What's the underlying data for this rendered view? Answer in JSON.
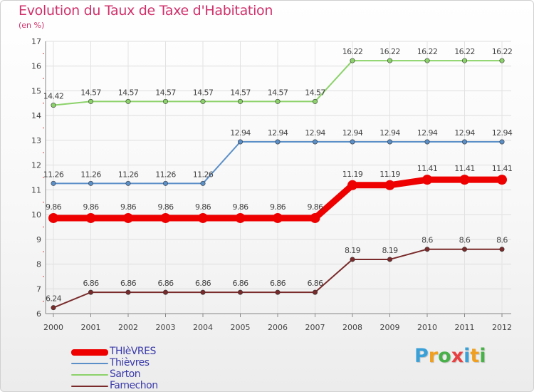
{
  "title": "Evolution du Taux de Taxe d'Habitation",
  "unit": "(en %)",
  "brand": {
    "letters": [
      "P",
      "r",
      "o",
      "x",
      "i",
      "t",
      "i"
    ],
    "colors": [
      "#3aa0d8",
      "#f0a020",
      "#4ab04a",
      "#e84040",
      "#3aa0d8",
      "#f0a020",
      "#4ab04a"
    ]
  },
  "chart_data": {
    "type": "line",
    "title": "Evolution du Taux de Taxe d'Habitation",
    "ylabel": "(en %)",
    "xlabel": "",
    "x": [
      "2000",
      "2001",
      "2002",
      "2003",
      "2004",
      "2005",
      "2006",
      "2007",
      "2008",
      "2009",
      "2010",
      "2011",
      "2012"
    ],
    "ylim": [
      6,
      17
    ],
    "yticks": [
      "6",
      "7",
      "8",
      "9",
      "10",
      "11",
      "12",
      "13",
      "14",
      "15",
      "16",
      "17"
    ],
    "grid": true,
    "legend_position": "bottom-left",
    "series": [
      {
        "name": "THIèVRES",
        "color": "#ee0000",
        "emphasis": true,
        "values": [
          9.86,
          9.86,
          9.86,
          9.86,
          9.86,
          9.86,
          9.86,
          9.86,
          11.19,
          11.19,
          11.41,
          11.41,
          11.41
        ],
        "labels": [
          "9.86",
          "9.86",
          "9.86",
          "9.86",
          "9.86",
          "9.86",
          "9.86",
          "9.86",
          "11.19",
          "11.19",
          "11.41",
          "11.41",
          "11.41"
        ]
      },
      {
        "name": "Thièvres",
        "color": "#5b8fc8",
        "values": [
          11.26,
          11.26,
          11.26,
          11.26,
          11.26,
          12.94,
          12.94,
          12.94,
          12.94,
          12.94,
          12.94,
          12.94,
          12.94
        ],
        "labels": [
          "11.26",
          "11.26",
          "11.26",
          "11.26",
          "11.26",
          "12.94",
          "12.94",
          "12.94",
          "12.94",
          "12.94",
          "12.94",
          "12.94",
          "12.94"
        ]
      },
      {
        "name": "Sarton",
        "color": "#8cd26a",
        "values": [
          14.42,
          14.57,
          14.57,
          14.57,
          14.57,
          14.57,
          14.57,
          14.57,
          16.22,
          16.22,
          16.22,
          16.22,
          16.22
        ],
        "labels": [
          "14.42",
          "14.57",
          "14.57",
          "14.57",
          "14.57",
          "14.57",
          "14.57",
          "14.57",
          "16.22",
          "16.22",
          "16.22",
          "16.22",
          "16.22"
        ]
      },
      {
        "name": "Famechon",
        "color": "#7a2a2a",
        "values": [
          6.24,
          6.86,
          6.86,
          6.86,
          6.86,
          6.86,
          6.86,
          6.86,
          8.19,
          8.19,
          8.6,
          8.6,
          8.6
        ],
        "labels": [
          "6.24",
          "6.86",
          "6.86",
          "6.86",
          "6.86",
          "6.86",
          "6.86",
          "6.86",
          "8.19",
          "8.19",
          "8.6",
          "8.6",
          "8.6"
        ]
      }
    ]
  }
}
